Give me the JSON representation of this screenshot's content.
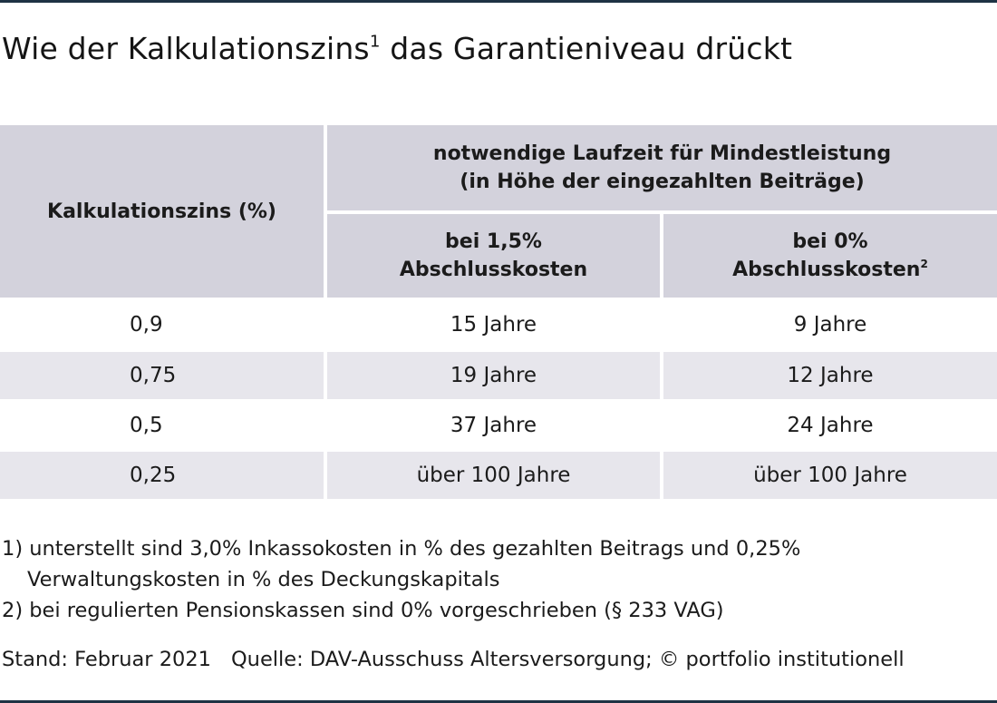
{
  "title": {
    "text": "Wie der Kalkulationszins",
    "sup": "1",
    "text2": " das Garantieniveau drückt"
  },
  "table": {
    "header": {
      "col1": "Kalkulationszins (%)",
      "group_line1": "notwendige Laufzeit für Mindestleistung",
      "group_line2": "(in Höhe der eingezahlten Beiträge)",
      "sub1_line1": "bei 1,5%",
      "sub1_line2": "Abschlusskosten",
      "sub2_line1": "bei 0%",
      "sub2_line2": "Abschlusskosten",
      "sub2_sup": "2"
    },
    "rows": [
      {
        "zins": "0,9",
        "a": "15 Jahre",
        "b": "9 Jahre"
      },
      {
        "zins": "0,75",
        "a": "19 Jahre",
        "b": "12 Jahre"
      },
      {
        "zins": "0,5",
        "a": "37 Jahre",
        "b": "24 Jahre"
      },
      {
        "zins": "0,25",
        "a": "über 100 Jahre",
        "b": "über 100 Jahre"
      }
    ]
  },
  "footnotes": {
    "fn1_line1": "1) unterstellt sind 3,0% Inkassokosten in % des gezahlten Beitrags und 0,25%",
    "fn1_line2": "Verwaltungskosten in % des Deckungskapitals",
    "fn2": "2) bei regulierten Pensionskassen sind 0% vorgeschrieben (§ 233 VAG)"
  },
  "source": {
    "stand": "Stand: Februar 2021",
    "quelle": "Quelle: DAV-Ausschuss Altersversorgung; © portfolio institutionell"
  },
  "colors": {
    "rule": "#1e3344",
    "header_bg": "#d3d2dc",
    "shaded_row_bg": "#e7e6ec"
  }
}
